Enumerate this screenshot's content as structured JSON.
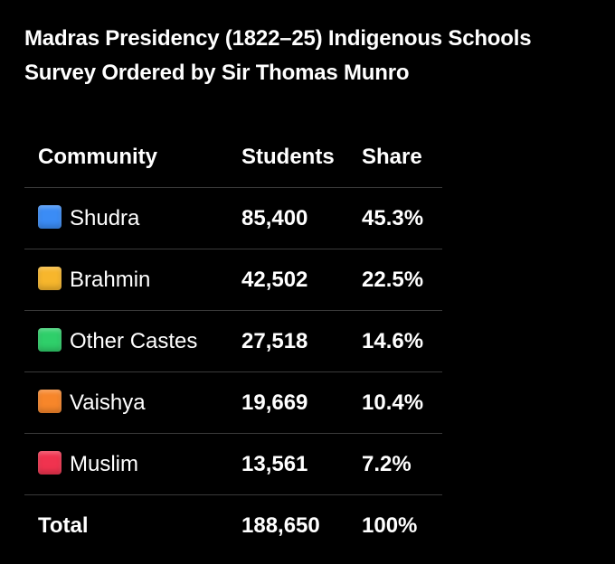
{
  "title": {
    "line1": "Madras Presidency (1822–25) Indigenous Schools",
    "line2": "Survey Ordered by Sir Thomas Munro"
  },
  "chart_data": {
    "type": "table",
    "columns": [
      "Community",
      "Students",
      "Share"
    ],
    "rows": [
      {
        "community": "Shudra",
        "students": "85,400",
        "share": "45.3%",
        "color": "#3b8cf5",
        "icon": "blue-square-icon"
      },
      {
        "community": "Brahmin",
        "students": "42,502",
        "share": "22.5%",
        "color": "#f7b62c",
        "icon": "yellow-square-icon"
      },
      {
        "community": "Other Castes",
        "students": "27,518",
        "share": "14.6%",
        "color": "#2fcf6a",
        "icon": "green-square-icon"
      },
      {
        "community": "Vaishya",
        "students": "19,669",
        "share": "10.4%",
        "color": "#f7862a",
        "icon": "orange-square-icon"
      },
      {
        "community": "Muslim",
        "students": "13,561",
        "share": "7.2%",
        "color": "#f0334f",
        "icon": "red-square-icon"
      }
    ],
    "total": {
      "label": "Total",
      "students": "188,650",
      "share": "100%"
    }
  }
}
